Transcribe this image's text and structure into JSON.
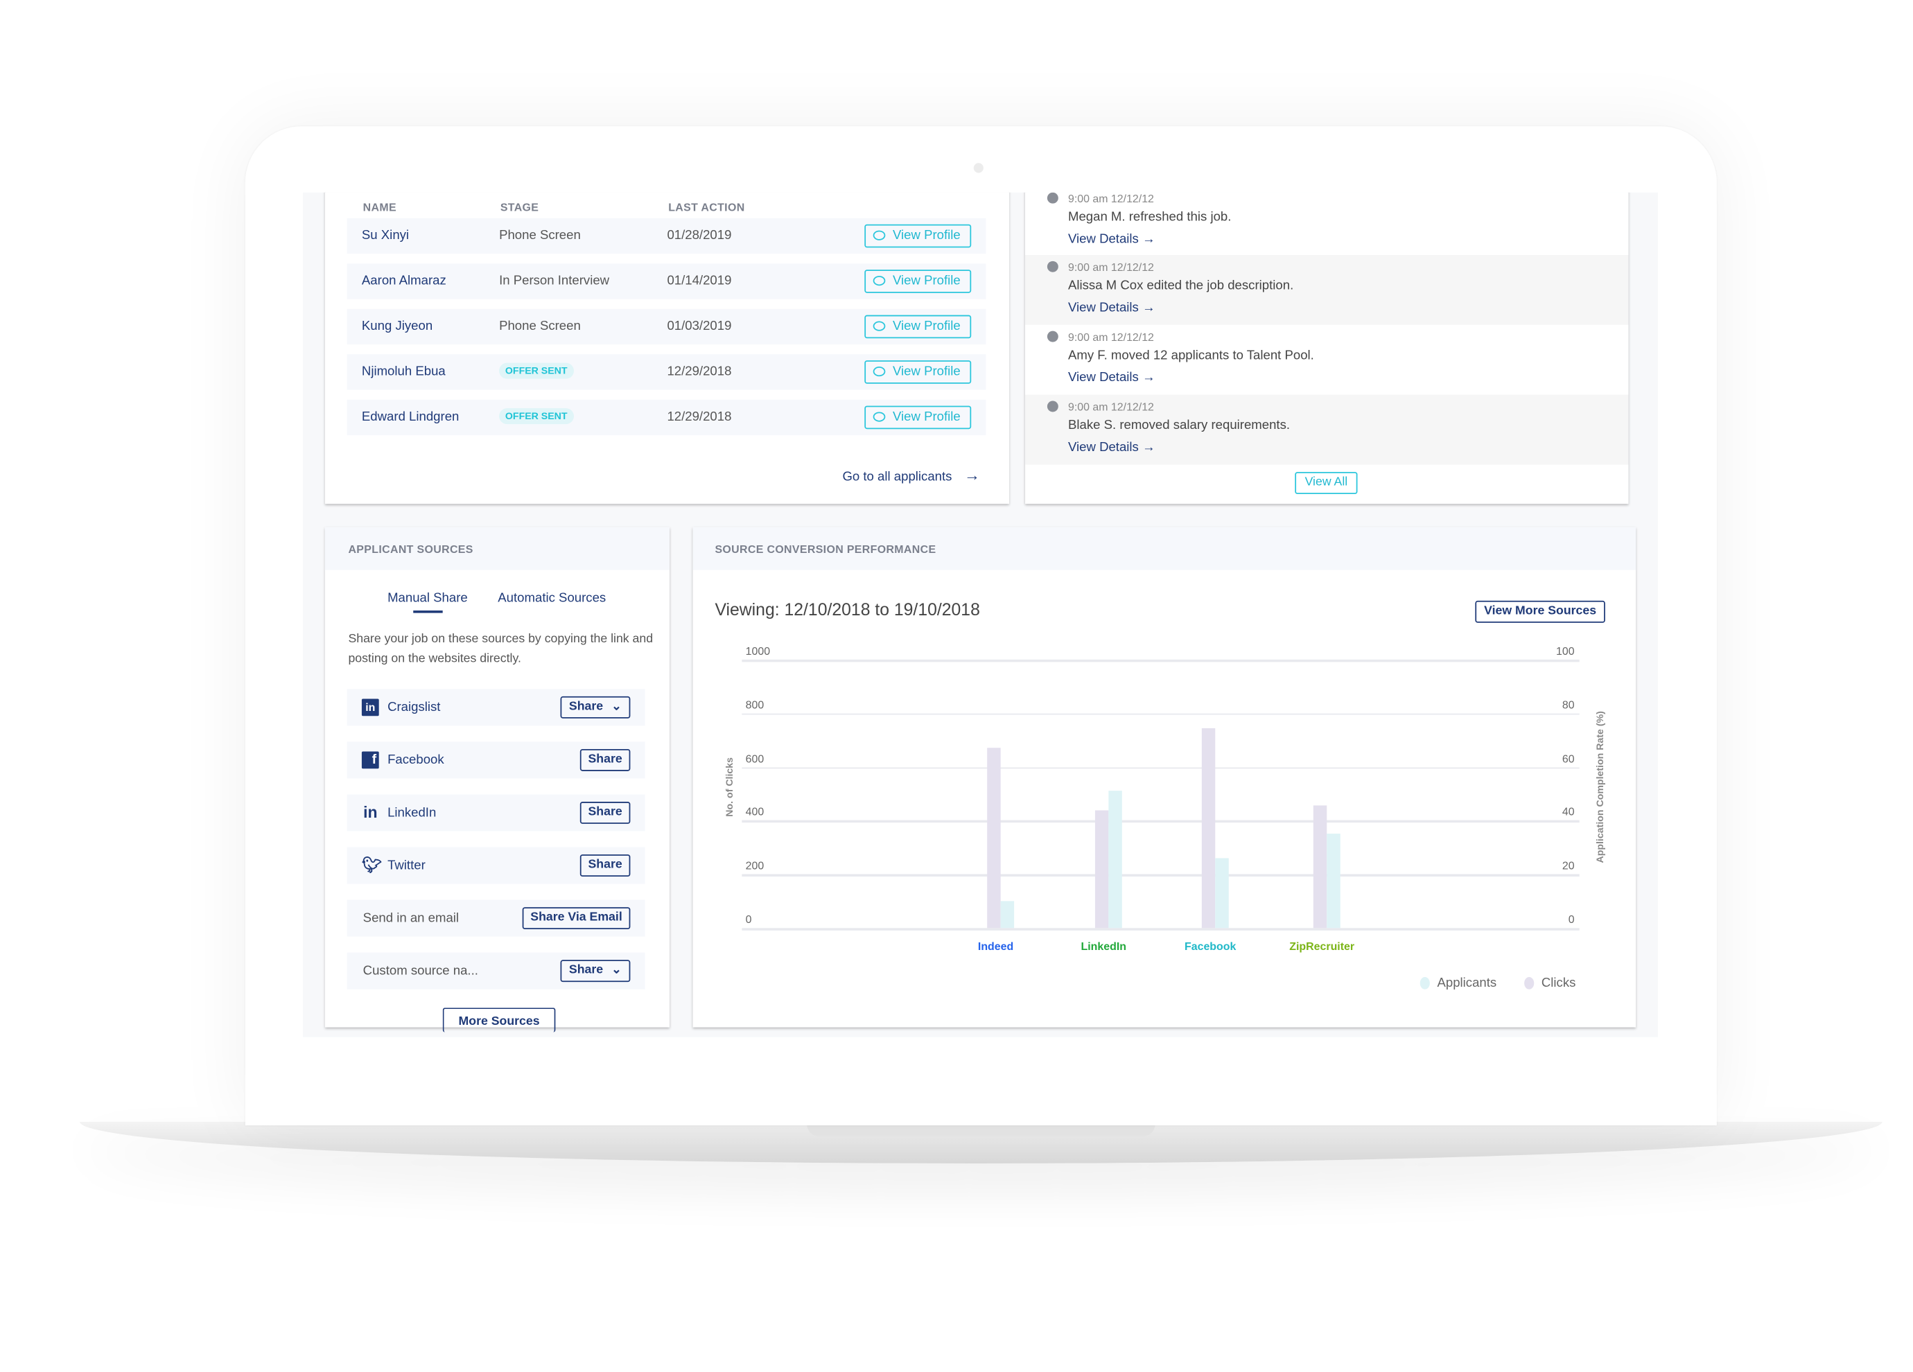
{
  "applicants_table": {
    "headers": [
      "NAME",
      "STAGE",
      "LAST ACTION"
    ],
    "rows": [
      {
        "name": "Su Xinyi",
        "stage": "Phone Screen",
        "last_action": "01/28/2019",
        "badge": false,
        "button": "View Profile"
      },
      {
        "name": "Aaron Almaraz",
        "stage": "In Person Interview",
        "last_action": "01/14/2019",
        "badge": false,
        "button": "View Profile"
      },
      {
        "name": "Kung Jiyeon",
        "stage": "Phone Screen",
        "last_action": "01/03/2019",
        "badge": false,
        "button": "View Profile"
      },
      {
        "name": "Njimoluh Ebua",
        "stage": "OFFER SENT",
        "last_action": "12/29/2018",
        "badge": true,
        "button": "View Profile"
      },
      {
        "name": "Edward Lindgren",
        "stage": "OFFER SENT",
        "last_action": "12/29/2018",
        "badge": true,
        "button": "View Profile"
      }
    ],
    "go_all_label": "Go to all applicants"
  },
  "activity": {
    "items": [
      {
        "time": "9:00 am 12/12/12",
        "text": "Megan M. refreshed this job.",
        "link": "View Details →"
      },
      {
        "time": "9:00 am 12/12/12",
        "text": "Alissa M Cox edited the job description.",
        "link": "View Details →"
      },
      {
        "time": "9:00 am 12/12/12",
        "text": "Amy F. moved 12 applicants to Talent Pool.",
        "link": "View Details →"
      },
      {
        "time": "9:00 am 12/12/12",
        "text": "Blake S. removed salary requirements.",
        "link": "View Details →"
      }
    ],
    "view_all": "View All"
  },
  "sources": {
    "title": "APPLICANT SOURCES",
    "tabs": [
      "Manual Share",
      "Automatic Sources"
    ],
    "active_tab": "Manual Share",
    "description": "Share your job on these sources by copying the link and posting on the websites directly.",
    "rows": [
      {
        "icon": "linkedin-box-icon",
        "label": "Craigslist",
        "button": "Share",
        "dropdown": true
      },
      {
        "icon": "facebook-icon",
        "label": "Facebook",
        "button": "Share",
        "dropdown": false
      },
      {
        "icon": "linkedin-icon",
        "label": "LinkedIn",
        "button": "Share",
        "dropdown": false
      },
      {
        "icon": "twitter-icon",
        "label": "Twitter",
        "button": "Share",
        "dropdown": false
      },
      {
        "icon": "",
        "label": "Send in an email",
        "button": "Share Via Email",
        "dropdown": false
      },
      {
        "icon": "",
        "label": "Custom source na...",
        "button": "Share",
        "dropdown": true
      }
    ],
    "more_button": "More Sources"
  },
  "performance": {
    "title": "SOURCE CONVERSION PERFORMANCE",
    "viewing": "Viewing: 12/10/2018 to 19/10/2018",
    "more_button": "View More Sources"
  },
  "chart_data": {
    "type": "bar",
    "categories": [
      "Indeed",
      "LinkedIn",
      "Facebook",
      "ZipRecruiter"
    ],
    "category_colors": [
      "#2563eb",
      "#22a83a",
      "#20b8c8",
      "#7cb518"
    ],
    "series": [
      {
        "name": "Clicks",
        "values": [
          670,
          440,
          745,
          455
        ],
        "color": "#e4e0ee"
      },
      {
        "name": "Applicants",
        "values": [
          100,
          510,
          260,
          350
        ],
        "color": "#def3f6"
      }
    ],
    "ylabel": "No. of Clicks",
    "ylabel_right": "Application Completion Rate (%)",
    "ylim": [
      0,
      1000
    ],
    "ylim_right": [
      0,
      100
    ],
    "yticks": [
      "0",
      "200",
      "400",
      "600",
      "800",
      "1000"
    ],
    "yticks_right": [
      "0",
      "20",
      "40",
      "60",
      "80",
      "100"
    ],
    "grid": true,
    "legend": [
      "Applicants",
      "Clicks"
    ],
    "legend_position": "bottom-right"
  }
}
